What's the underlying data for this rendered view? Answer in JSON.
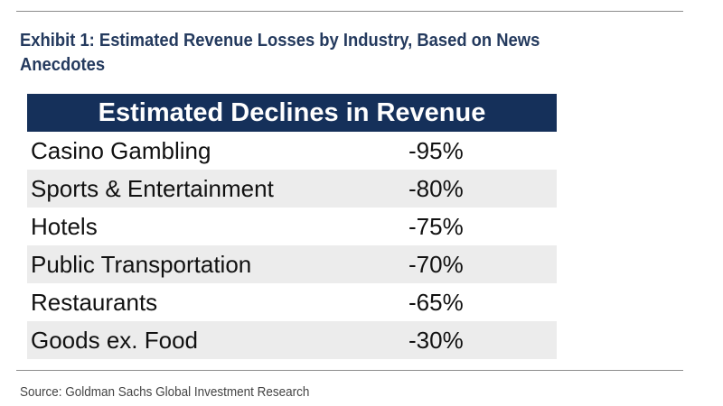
{
  "exhibit_title": "Exhibit 1: Estimated Revenue Losses by Industry, Based on News Anecdotes",
  "source": "Source: Goldman Sachs Global Investment Research",
  "colors": {
    "header_background": "#15305a",
    "header_text": "#ffffff",
    "title_text": "#243a5e",
    "row_shade": "#ececec"
  },
  "chart_data": {
    "type": "table",
    "title": "Estimated Declines in Revenue",
    "rows": [
      {
        "industry": "Casino Gambling",
        "value": "-95%"
      },
      {
        "industry": "Sports & Entertainment",
        "value": "-80%"
      },
      {
        "industry": "Hotels",
        "value": "-75%"
      },
      {
        "industry": "Public Transportation",
        "value": "-70%"
      },
      {
        "industry": "Restaurants",
        "value": "-65%"
      },
      {
        "industry": "Goods ex. Food",
        "value": "-30%"
      }
    ]
  }
}
